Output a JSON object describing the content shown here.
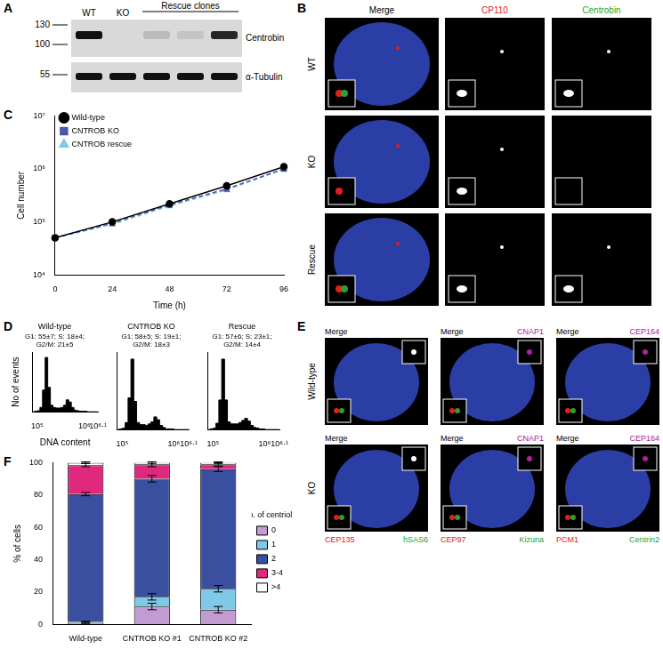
{
  "figure": {
    "panels": {
      "A": {
        "lane_labels": [
          "WT",
          "KO"
        ],
        "group_label": "Rescue clones",
        "markers": [
          130,
          100,
          55
        ],
        "rows": [
          "Centrobin",
          "α-Tubulin"
        ],
        "centrobin_band": [
          1,
          0,
          0.15,
          0.1,
          0.9
        ],
        "tubulin_band": [
          1,
          1,
          1,
          1,
          1
        ]
      },
      "B": {
        "rows": [
          "WT",
          "KO",
          "Rescue"
        ],
        "columns": [
          {
            "label": "Merge",
            "color": "#000000"
          },
          {
            "label": "CP110",
            "color": "#e0201b"
          },
          {
            "label": "Centrobin",
            "color": "#2ca02c"
          }
        ],
        "centrobin_signal": [
          true,
          false,
          true
        ]
      },
      "E": {
        "rows": [
          "Wild-type",
          "KO"
        ],
        "images": [
          {
            "merge": "Merge",
            "bottom": [
              {
                "label": "CEP135",
                "color": "#e0201b"
              },
              {
                "label": "hSAS6",
                "color": "#2ca02c"
              }
            ]
          },
          {
            "merge": "Merge",
            "top": {
              "label": "CNAP1",
              "color": "#b0209a"
            },
            "bottom": [
              {
                "label": "CEP97",
                "color": "#e0201b"
              },
              {
                "label": "Kizuna",
                "color": "#2ca02c"
              }
            ]
          },
          {
            "merge": "Merge",
            "top": {
              "label": "CEP164",
              "color": "#b0209a"
            },
            "bottom": [
              {
                "label": "PCM1",
                "color": "#e0201b"
              },
              {
                "label": "Centrin2",
                "color": "#2ca02c"
              }
            ]
          }
        ]
      }
    },
    "chart_panels": [
      "C",
      "D",
      "D",
      "D",
      "F"
    ]
  },
  "chart_data": [
    {
      "type": "line",
      "x_label": "Time (h)",
      "y_label": "Cell number",
      "x": [
        0,
        24,
        48,
        72,
        96
      ],
      "series": [
        {
          "name": "Wild-type",
          "color": "#000000",
          "marker": "circle",
          "line_style": "solid",
          "values": [
            50000,
            100000,
            220000,
            480000,
            1100000
          ]
        },
        {
          "name": "CNTROB KO",
          "color": "#4a5aa8",
          "marker": "square",
          "line_style": "dashed",
          "values": [
            50000,
            95000,
            210000,
            420000,
            1000000
          ]
        },
        {
          "name": "CNTROB rescue",
          "color": "#7ec8e8",
          "marker": "triangle",
          "line_style": "dashed",
          "values": [
            50000,
            90000,
            200000,
            400000,
            1000000
          ]
        }
      ],
      "xlim": [
        0,
        96
      ],
      "xticks": [
        0,
        24,
        48,
        72,
        96
      ],
      "ylim": [
        10000,
        10000000
      ],
      "yticks": [
        {
          "value": 10000,
          "label": "10⁴"
        },
        {
          "value": 100000,
          "label": "10⁵"
        },
        {
          "value": 1000000,
          "label": "10⁶"
        },
        {
          "value": 10000000,
          "label": "10⁷"
        }
      ],
      "log": "y",
      "grid": false,
      "legend": "upper left"
    },
    {
      "type": "histogram",
      "title": "Wild-type",
      "subtitle": [
        "G1: 55±7; S: 18±4;",
        "G2/M: 21±5"
      ],
      "x_label": "DNA content",
      "y_label": "No of events",
      "bins": [
        0,
        50000,
        100000,
        150000,
        200000,
        250000,
        300000,
        350000,
        400000,
        450000,
        500000,
        550000,
        600000,
        650000,
        700000,
        750000,
        800000,
        850000,
        900000,
        950000,
        1000000,
        1050000,
        1100000,
        1150000,
        1200000,
        1250000
      ],
      "counts": [
        0,
        0,
        1,
        2,
        8,
        40,
        100,
        45,
        12,
        8,
        7,
        7,
        8,
        12,
        22,
        18,
        8,
        3,
        2,
        1,
        1,
        1,
        0,
        0,
        0
      ],
      "color": "#000000",
      "xlim": [
        0,
        1258925
      ],
      "xticks": [
        {
          "value": 100000,
          "label": "10⁵"
        },
        {
          "value": 1000000,
          "label": "10⁶"
        },
        {
          "value": 1258925,
          "label": "10⁶·¹"
        }
      ],
      "ylim": [
        0,
        110
      ],
      "yticks": [],
      "tick_labels": "x",
      "grid": false
    },
    {
      "type": "histogram",
      "title": "CNTROB KO",
      "subtitle": [
        "G1: 58±5; S: 19±1;",
        "G2/M: 18±3"
      ],
      "bins": [
        0,
        50000,
        100000,
        150000,
        200000,
        250000,
        300000,
        350000,
        400000,
        450000,
        500000,
        550000,
        600000,
        650000,
        700000,
        750000,
        800000,
        850000,
        900000,
        950000,
        1000000,
        1050000,
        1100000,
        1150000,
        1200000,
        1250000
      ],
      "counts": [
        0,
        0,
        1,
        2,
        10,
        45,
        100,
        40,
        10,
        7,
        7,
        6,
        8,
        11,
        18,
        14,
        6,
        3,
        1,
        1,
        1,
        0,
        0,
        0,
        0
      ],
      "color": "#000000",
      "xlim": [
        0,
        1258925
      ],
      "xticks": [
        {
          "value": 100000,
          "label": "10⁵"
        },
        {
          "value": 1000000,
          "label": "10⁶"
        },
        {
          "value": 1258925,
          "label": "10⁶·¹"
        }
      ],
      "ylim": [
        0,
        110
      ],
      "yticks": [],
      "tick_labels": "x",
      "grid": false
    },
    {
      "type": "histogram",
      "title": "Rescue",
      "subtitle": [
        "G1: 57±6; S: 23±1;",
        "G2/M: 14±4"
      ],
      "bins": [
        0,
        50000,
        100000,
        150000,
        200000,
        250000,
        300000,
        350000,
        400000,
        450000,
        500000,
        550000,
        600000,
        650000,
        700000,
        750000,
        800000,
        850000,
        900000,
        950000,
        1000000,
        1050000,
        1100000,
        1150000,
        1200000,
        1250000
      ],
      "counts": [
        0,
        0,
        1,
        2,
        9,
        42,
        100,
        42,
        11,
        8,
        8,
        8,
        10,
        13,
        16,
        12,
        6,
        3,
        2,
        1,
        1,
        0,
        0,
        0,
        0
      ],
      "color": "#000000",
      "xlim": [
        0,
        1258925
      ],
      "xticks": [
        {
          "value": 100000,
          "label": "10⁵"
        },
        {
          "value": 1000000,
          "label": "10⁶"
        },
        {
          "value": 1258925,
          "label": "10⁶·¹"
        }
      ],
      "ylim": [
        0,
        110
      ],
      "yticks": [],
      "tick_labels": "x",
      "grid": false
    },
    {
      "type": "bar",
      "stacked": true,
      "y_label": "% of cells",
      "categories": [
        "Wild-type",
        "CNTROB KO #1",
        "CNTROB KO #2"
      ],
      "legend_title": "No. of centrioles",
      "legend": "right",
      "series": [
        {
          "name": "0",
          "color": "#c39bd3",
          "values": [
            1,
            11,
            9
          ],
          "errors": [
            0.5,
            2,
            2
          ]
        },
        {
          "name": "1",
          "color": "#7ec8e8",
          "values": [
            0.5,
            6,
            13
          ],
          "errors": [
            0.3,
            2,
            2
          ]
        },
        {
          "name": "2",
          "color": "#3a4fa0",
          "values": [
            79,
            73,
            74
          ],
          "errors": [
            1,
            2,
            1.5
          ]
        },
        {
          "name": "3-4",
          "color": "#e0287f",
          "values": [
            18,
            9,
            3
          ],
          "errors": [
            1,
            1.5,
            1
          ]
        },
        {
          "name": ">4",
          "color": "#ffffff",
          "values": [
            1.5,
            1,
            1
          ],
          "errors": [
            0.5,
            0.5,
            0.5
          ]
        }
      ],
      "ylim": [
        0,
        100
      ],
      "yticks": [
        0,
        20,
        40,
        60,
        80,
        100
      ],
      "grid": false
    }
  ]
}
